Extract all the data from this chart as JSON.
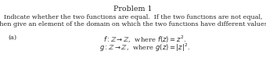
{
  "title": "Problem 1",
  "line1": "Indicate whether the two functions are equal.  If the two functions are not equal,",
  "line2": "then give an element of the domain on which the two functions have different values.",
  "part_label": "(a)",
  "func_line1": "$f : \\mathbb{Z} \\to \\mathbb{Z}$,  where $f(z) = z^2$.",
  "func_line2": "$g : \\mathbb{Z} \\to \\mathbb{Z}$,  where $g(z) = |z|^2$.",
  "bg_color": "#ffffff",
  "text_color": "#2a2a2a",
  "title_fontsize": 6.8,
  "body_fontsize": 5.8,
  "math_fontsize": 6.0
}
